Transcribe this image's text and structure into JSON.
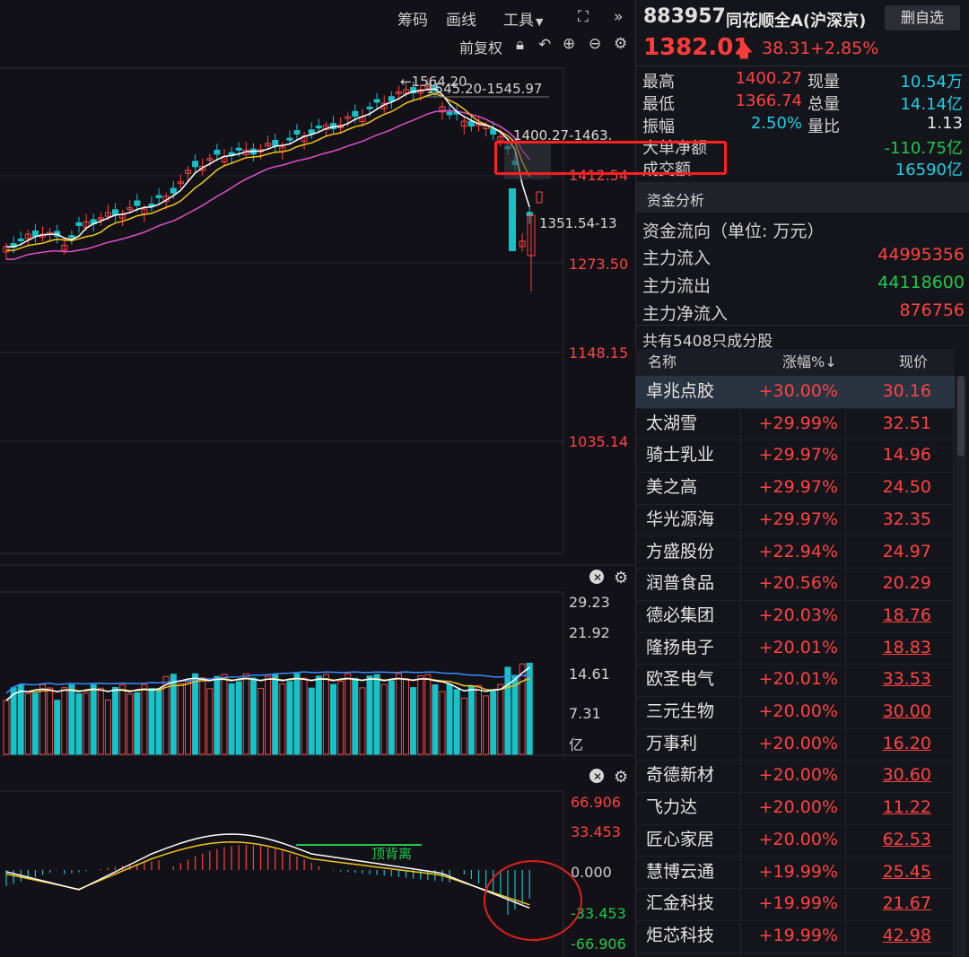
{
  "toolbar": {
    "chips_label": "筹码",
    "draw_label": "画线",
    "tools_label": "工具",
    "adjust_label": "前复权"
  },
  "price_chart": {
    "y_labels": [
      "1412.54",
      "1273.50",
      "1148.15",
      "1035.14"
    ],
    "high_annotation": "←1564.20",
    "range_annotation": "1545.20-1545.97",
    "annotation_2": "1400.27-1463.",
    "annotation_3": "1351.54-13"
  },
  "volume_chart": {
    "y_labels": [
      "29.23",
      "21.92",
      "14.61",
      "7.31",
      "亿"
    ]
  },
  "macd_chart": {
    "y_labels": [
      "66.906",
      "33.453",
      "0.000",
      "-33.453",
      "-66.906"
    ],
    "divergence_label": "顶背离"
  },
  "quote": {
    "code": "883957",
    "name": "同花顺全A(沪深京)",
    "remove_watch": "删自选",
    "price": "1382.01",
    "change": "38.31",
    "change_pct": "+2.85%",
    "stats": [
      {
        "label": "最高",
        "value": "1400.27",
        "label2": "现量",
        "value2": "10.54万"
      },
      {
        "label": "最低",
        "value": "1366.74",
        "label2": "总量",
        "value2": "14.14亿"
      },
      {
        "label": "振幅",
        "value": "2.50%",
        "label2": "量比",
        "value2": "1.13"
      }
    ],
    "big_net_label": "大单净额",
    "big_net_value": "-110.75亿",
    "turnover_label": "成交额",
    "turnover_value": "16590亿"
  },
  "funds": {
    "title": "资金分析",
    "flow_label": "资金流向（单位: 万元）",
    "inflow_label": "主力流入",
    "inflow_value": "44995356",
    "outflow_label": "主力流出",
    "outflow_value": "44118600",
    "net_label": "主力净流入",
    "net_value": "876756"
  },
  "components": {
    "count_label": "共有5408只成分股",
    "headers": {
      "name": "名称",
      "change": "涨幅%↓",
      "price": "现价"
    },
    "rows": [
      {
        "name": "卓兆点胶",
        "change": "+30.00%",
        "price": "30.16"
      },
      {
        "name": "太湖雪",
        "change": "+29.99%",
        "price": "32.51"
      },
      {
        "name": "骑士乳业",
        "change": "+29.97%",
        "price": "14.96"
      },
      {
        "name": "美之高",
        "change": "+29.97%",
        "price": "24.50"
      },
      {
        "name": "华光源海",
        "change": "+29.97%",
        "price": "32.35"
      },
      {
        "name": "方盛股份",
        "change": "+22.94%",
        "price": "24.97"
      },
      {
        "name": "润普食品",
        "change": "+20.56%",
        "price": "20.29"
      },
      {
        "name": "德必集团",
        "change": "+20.03%",
        "price": "18.76"
      },
      {
        "name": "隆扬电子",
        "change": "+20.01%",
        "price": "18.83"
      },
      {
        "name": "欧圣电气",
        "change": "+20.01%",
        "price": "33.53"
      },
      {
        "name": "三元生物",
        "change": "+20.00%",
        "price": "30.00"
      },
      {
        "name": "万事利",
        "change": "+20.00%",
        "price": "16.20"
      },
      {
        "name": "奇德新材",
        "change": "+20.00%",
        "price": "30.60"
      },
      {
        "name": "飞力达",
        "change": "+20.00%",
        "price": "11.22"
      },
      {
        "name": "匠心家居",
        "change": "+20.00%",
        "price": "62.53"
      },
      {
        "name": "慧博云通",
        "change": "+19.99%",
        "price": "25.45"
      },
      {
        "name": "汇金科技",
        "change": "+19.99%",
        "price": "21.67"
      },
      {
        "name": "炬芯科技",
        "change": "+19.99%",
        "price": "42.98"
      }
    ]
  },
  "colors": {
    "up": "#ff4242",
    "down": "#17c2c9",
    "ma5": "#ffffff",
    "ma10": "#f5c518",
    "ma20": "#e050c8",
    "highlight": "#ff2020"
  }
}
